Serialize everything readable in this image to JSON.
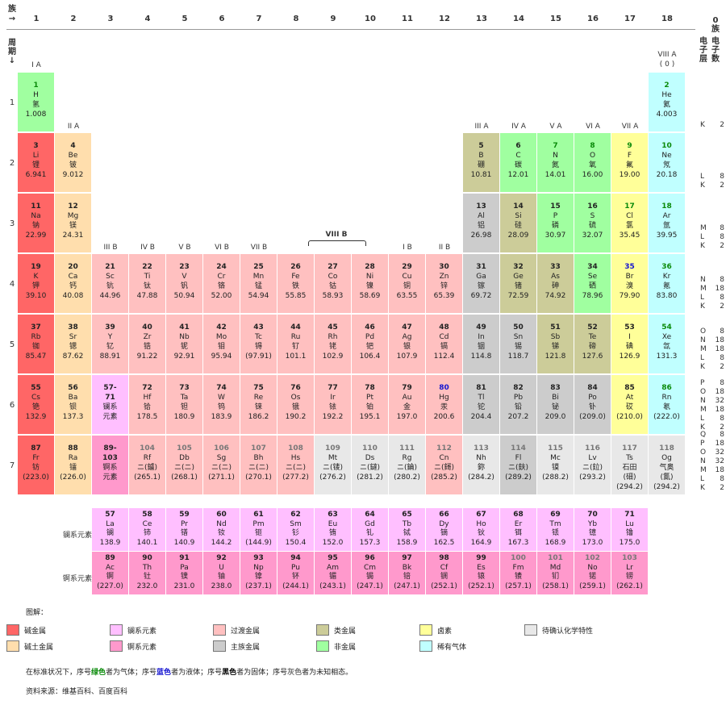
{
  "header": {
    "group_corner": "族\n→",
    "period_corner": "周\n期\n↓",
    "zero_group_heading": "0\n族",
    "shell_heading": "电\n子\n层",
    "electron_heading": "电\n子\n数",
    "group_numbers": [
      "1",
      "2",
      "3",
      "4",
      "5",
      "6",
      "7",
      "8",
      "9",
      "10",
      "11",
      "12",
      "13",
      "14",
      "15",
      "16",
      "17",
      "18"
    ],
    "period_numbers": [
      "1",
      "2",
      "3",
      "4",
      "5",
      "6",
      "7"
    ],
    "subgroup_labels": {
      "IA": "I A",
      "IIA": "II A",
      "IIIB": "III B",
      "IVB": "IV B",
      "VB": "V B",
      "VIB": "VI B",
      "VIIB": "VII B",
      "VIII": "VIII B",
      "IB": "I B",
      "IIB": "II B",
      "IIIA": "III A",
      "IVA": "IV A",
      "VA": "V A",
      "VIA": "VI A",
      "VIIA": "VII A",
      "VIIIA": "VIII A\n( 0 )"
    }
  },
  "colors": {
    "alkali": "#ff6666",
    "alkaline_earth": "#ffdead",
    "lanthanide": "#ffbfff",
    "actinide": "#ff99cc",
    "transition": "#ffc0c0",
    "post_transition": "#cccccc",
    "metalloid": "#cccc99",
    "nonmetal": "#a0ffa0",
    "halogen": "#ffff99",
    "noble_gas": "#c0ffff",
    "unknown": "#e8e8e8"
  },
  "elements": [
    {
      "n": "1",
      "s": "H",
      "c": "氢",
      "m": "1.008",
      "t": "nonmetal",
      "st": "gas"
    },
    {
      "n": "2",
      "s": "He",
      "c": "氦",
      "m": "4.003",
      "t": "noble_gas",
      "st": "gas"
    },
    {
      "n": "3",
      "s": "Li",
      "c": "锂",
      "m": "6.941",
      "t": "alkali",
      "st": "solid"
    },
    {
      "n": "4",
      "s": "Be",
      "c": "铍",
      "m": "9.012",
      "t": "alkaline_earth",
      "st": "solid"
    },
    {
      "n": "5",
      "s": "B",
      "c": "硼",
      "m": "10.81",
      "t": "metalloid",
      "st": "solid"
    },
    {
      "n": "6",
      "s": "C",
      "c": "碳",
      "m": "12.01",
      "t": "nonmetal",
      "st": "solid"
    },
    {
      "n": "7",
      "s": "N",
      "c": "氮",
      "m": "14.01",
      "t": "nonmetal",
      "st": "gas"
    },
    {
      "n": "8",
      "s": "O",
      "c": "氧",
      "m": "16.00",
      "t": "nonmetal",
      "st": "gas"
    },
    {
      "n": "9",
      "s": "F",
      "c": "氟",
      "m": "19.00",
      "t": "halogen",
      "st": "gas"
    },
    {
      "n": "10",
      "s": "Ne",
      "c": "氖",
      "m": "20.18",
      "t": "noble_gas",
      "st": "gas"
    },
    {
      "n": "11",
      "s": "Na",
      "c": "钠",
      "m": "22.99",
      "t": "alkali",
      "st": "solid"
    },
    {
      "n": "12",
      "s": "Mg",
      "c": "镁",
      "m": "24.31",
      "t": "alkaline_earth",
      "st": "solid"
    },
    {
      "n": "13",
      "s": "Al",
      "c": "铝",
      "m": "26.98",
      "t": "post_transition",
      "st": "solid"
    },
    {
      "n": "14",
      "s": "Si",
      "c": "硅",
      "m": "28.09",
      "t": "metalloid",
      "st": "solid"
    },
    {
      "n": "15",
      "s": "P",
      "c": "磷",
      "m": "30.97",
      "t": "nonmetal",
      "st": "solid"
    },
    {
      "n": "16",
      "s": "S",
      "c": "硫",
      "m": "32.07",
      "t": "nonmetal",
      "st": "solid"
    },
    {
      "n": "17",
      "s": "Cl",
      "c": "氯",
      "m": "35.45",
      "t": "halogen",
      "st": "gas"
    },
    {
      "n": "18",
      "s": "Ar",
      "c": "氩",
      "m": "39.95",
      "t": "noble_gas",
      "st": "gas"
    },
    {
      "n": "19",
      "s": "K",
      "c": "钾",
      "m": "39.10",
      "t": "alkali",
      "st": "solid"
    },
    {
      "n": "20",
      "s": "Ca",
      "c": "钙",
      "m": "40.08",
      "t": "alkaline_earth",
      "st": "solid"
    },
    {
      "n": "21",
      "s": "Sc",
      "c": "钪",
      "m": "44.96",
      "t": "transition",
      "st": "solid"
    },
    {
      "n": "22",
      "s": "Ti",
      "c": "钛",
      "m": "47.88",
      "t": "transition",
      "st": "solid"
    },
    {
      "n": "23",
      "s": "V",
      "c": "钒",
      "m": "50.94",
      "t": "transition",
      "st": "solid"
    },
    {
      "n": "24",
      "s": "Cr",
      "c": "铬",
      "m": "52.00",
      "t": "transition",
      "st": "solid"
    },
    {
      "n": "25",
      "s": "Mn",
      "c": "锰",
      "m": "54.94",
      "t": "transition",
      "st": "solid"
    },
    {
      "n": "26",
      "s": "Fe",
      "c": "铁",
      "m": "55.85",
      "t": "transition",
      "st": "solid"
    },
    {
      "n": "27",
      "s": "Co",
      "c": "钴",
      "m": "58.93",
      "t": "transition",
      "st": "solid"
    },
    {
      "n": "28",
      "s": "Ni",
      "c": "镍",
      "m": "58.69",
      "t": "transition",
      "st": "solid"
    },
    {
      "n": "29",
      "s": "Cu",
      "c": "铜",
      "m": "63.55",
      "t": "transition",
      "st": "solid"
    },
    {
      "n": "30",
      "s": "Zn",
      "c": "锌",
      "m": "65.39",
      "t": "transition",
      "st": "solid"
    },
    {
      "n": "31",
      "s": "Ga",
      "c": "镓",
      "m": "69.72",
      "t": "post_transition",
      "st": "solid"
    },
    {
      "n": "32",
      "s": "Ge",
      "c": "锗",
      "m": "72.59",
      "t": "metalloid",
      "st": "solid"
    },
    {
      "n": "33",
      "s": "As",
      "c": "砷",
      "m": "74.92",
      "t": "metalloid",
      "st": "solid"
    },
    {
      "n": "34",
      "s": "Se",
      "c": "硒",
      "m": "78.96",
      "t": "nonmetal",
      "st": "solid"
    },
    {
      "n": "35",
      "s": "Br",
      "c": "溴",
      "m": "79.90",
      "t": "halogen",
      "st": "liquid"
    },
    {
      "n": "36",
      "s": "Kr",
      "c": "氪",
      "m": "83.80",
      "t": "noble_gas",
      "st": "gas"
    },
    {
      "n": "37",
      "s": "Rb",
      "c": "铷",
      "m": "85.47",
      "t": "alkali",
      "st": "solid"
    },
    {
      "n": "38",
      "s": "Sr",
      "c": "锶",
      "m": "87.62",
      "t": "alkaline_earth",
      "st": "solid"
    },
    {
      "n": "39",
      "s": "Y",
      "c": "钇",
      "m": "88.91",
      "t": "transition",
      "st": "solid"
    },
    {
      "n": "40",
      "s": "Zr",
      "c": "锆",
      "m": "91.22",
      "t": "transition",
      "st": "solid"
    },
    {
      "n": "41",
      "s": "Nb",
      "c": "铌",
      "m": "92.91",
      "t": "transition",
      "st": "solid"
    },
    {
      "n": "42",
      "s": "Mo",
      "c": "钼",
      "m": "95.94",
      "t": "transition",
      "st": "solid"
    },
    {
      "n": "43",
      "s": "Tc",
      "c": "锝",
      "m": "(97.91)",
      "t": "transition",
      "st": "solid"
    },
    {
      "n": "44",
      "s": "Ru",
      "c": "钌",
      "m": "101.1",
      "t": "transition",
      "st": "solid"
    },
    {
      "n": "45",
      "s": "Rh",
      "c": "铑",
      "m": "102.9",
      "t": "transition",
      "st": "solid"
    },
    {
      "n": "46",
      "s": "Pd",
      "c": "钯",
      "m": "106.4",
      "t": "transition",
      "st": "solid"
    },
    {
      "n": "47",
      "s": "Ag",
      "c": "银",
      "m": "107.9",
      "t": "transition",
      "st": "solid"
    },
    {
      "n": "48",
      "s": "Cd",
      "c": "镉",
      "m": "112.4",
      "t": "transition",
      "st": "solid"
    },
    {
      "n": "49",
      "s": "In",
      "c": "铟",
      "m": "114.8",
      "t": "post_transition",
      "st": "solid"
    },
    {
      "n": "50",
      "s": "Sn",
      "c": "锡",
      "m": "118.7",
      "t": "post_transition",
      "st": "solid"
    },
    {
      "n": "51",
      "s": "Sb",
      "c": "锑",
      "m": "121.8",
      "t": "metalloid",
      "st": "solid"
    },
    {
      "n": "52",
      "s": "Te",
      "c": "碲",
      "m": "127.6",
      "t": "metalloid",
      "st": "solid"
    },
    {
      "n": "53",
      "s": "I",
      "c": "碘",
      "m": "126.9",
      "t": "halogen",
      "st": "solid"
    },
    {
      "n": "54",
      "s": "Xe",
      "c": "氙",
      "m": "131.3",
      "t": "noble_gas",
      "st": "gas"
    },
    {
      "n": "55",
      "s": "Cs",
      "c": "铯",
      "m": "132.9",
      "t": "alkali",
      "st": "solid"
    },
    {
      "n": "56",
      "s": "Ba",
      "c": "钡",
      "m": "137.3",
      "t": "alkaline_earth",
      "st": "solid"
    },
    {
      "n": "57-\n71",
      "s": "",
      "c": "镧系\n元素",
      "m": "",
      "t": "lanthanide",
      "st": "solid"
    },
    {
      "n": "72",
      "s": "Hf",
      "c": "铪",
      "m": "178.5",
      "t": "transition",
      "st": "solid"
    },
    {
      "n": "73",
      "s": "Ta",
      "c": "钽",
      "m": "180.9",
      "t": "transition",
      "st": "solid"
    },
    {
      "n": "74",
      "s": "W",
      "c": "钨",
      "m": "183.9",
      "t": "transition",
      "st": "solid"
    },
    {
      "n": "75",
      "s": "Re",
      "c": "铼",
      "m": "186.2",
      "t": "transition",
      "st": "solid"
    },
    {
      "n": "76",
      "s": "Os",
      "c": "锇",
      "m": "190.2",
      "t": "transition",
      "st": "solid"
    },
    {
      "n": "77",
      "s": "Ir",
      "c": "铱",
      "m": "192.2",
      "t": "transition",
      "st": "solid"
    },
    {
      "n": "78",
      "s": "Pt",
      "c": "铂",
      "m": "195.1",
      "t": "transition",
      "st": "solid"
    },
    {
      "n": "79",
      "s": "Au",
      "c": "金",
      "m": "197.0",
      "t": "transition",
      "st": "solid"
    },
    {
      "n": "80",
      "s": "Hg",
      "c": "汞",
      "m": "200.6",
      "t": "transition",
      "st": "liquid"
    },
    {
      "n": "81",
      "s": "Tl",
      "c": "铊",
      "m": "204.4",
      "t": "post_transition",
      "st": "solid"
    },
    {
      "n": "82",
      "s": "Pb",
      "c": "铅",
      "m": "207.2",
      "t": "post_transition",
      "st": "solid"
    },
    {
      "n": "83",
      "s": "Bi",
      "c": "铋",
      "m": "209.0",
      "t": "post_transition",
      "st": "solid"
    },
    {
      "n": "84",
      "s": "Po",
      "c": "钋",
      "m": "(209.0)",
      "t": "post_transition",
      "st": "solid"
    },
    {
      "n": "85",
      "s": "At",
      "c": "砹",
      "m": "(210.0)",
      "t": "halogen",
      "st": "solid"
    },
    {
      "n": "86",
      "s": "Rn",
      "c": "氡",
      "m": "(222.0)",
      "t": "noble_gas",
      "st": "gas"
    },
    {
      "n": "87",
      "s": "Fr",
      "c": "钫",
      "m": "(223.0)",
      "t": "alkali",
      "st": "solid"
    },
    {
      "n": "88",
      "s": "Ra",
      "c": "镭",
      "m": "(226.0)",
      "t": "alkaline_earth",
      "st": "solid"
    },
    {
      "n": "89-\n103",
      "s": "",
      "c": "锕系\n元素",
      "m": "",
      "t": "actinide",
      "st": "solid"
    },
    {
      "n": "104",
      "s": "Rf",
      "c": "ニ(鑪)",
      "m": "(265.1)",
      "t": "transition",
      "st": "unknown"
    },
    {
      "n": "105",
      "s": "Db",
      "c": "ニ(ニ)",
      "m": "(268.1)",
      "t": "transition",
      "st": "unknown"
    },
    {
      "n": "106",
      "s": "Sg",
      "c": "ニ(ニ)",
      "m": "(271.1)",
      "t": "transition",
      "st": "unknown"
    },
    {
      "n": "107",
      "s": "Bh",
      "c": "ニ(ニ)",
      "m": "(270.1)",
      "t": "transition",
      "st": "unknown"
    },
    {
      "n": "108",
      "s": "Hs",
      "c": "ニ(ニ)",
      "m": "(277.2)",
      "t": "transition",
      "st": "unknown"
    },
    {
      "n": "109",
      "s": "Mt",
      "c": "ニ(鿏)",
      "m": "(276.2)",
      "t": "unknown",
      "st": "unknown"
    },
    {
      "n": "110",
      "s": "Ds",
      "c": "ニ(鐽)",
      "m": "(281.2)",
      "t": "unknown",
      "st": "unknown"
    },
    {
      "n": "111",
      "s": "Rg",
      "c": "ニ(錀)",
      "m": "(280.2)",
      "t": "unknown",
      "st": "unknown"
    },
    {
      "n": "112",
      "s": "Cn",
      "c": "ニ(鎶)",
      "m": "(285.2)",
      "t": "transition",
      "st": "unknown"
    },
    {
      "n": "113",
      "s": "Nh",
      "c": "鉨",
      "m": "(284.2)",
      "t": "unknown",
      "st": "unknown"
    },
    {
      "n": "114",
      "s": "Fl",
      "c": "ニ(鈇)",
      "m": "(289.2)",
      "t": "post_transition",
      "st": "unknown"
    },
    {
      "n": "115",
      "s": "Mc",
      "c": "镆",
      "m": "(288.2)",
      "t": "unknown",
      "st": "unknown"
    },
    {
      "n": "116",
      "s": "Lv",
      "c": "ニ(鉝)",
      "m": "(293.2)",
      "t": "unknown",
      "st": "unknown"
    },
    {
      "n": "117",
      "s": "Ts",
      "c": "石田\n(鿬)",
      "m": "(294.2)",
      "t": "unknown",
      "st": "unknown"
    },
    {
      "n": "118",
      "s": "Og",
      "c": "气奥\n(鿫)",
      "m": "(294.2)",
      "t": "unknown",
      "st": "unknown"
    }
  ],
  "lanthanides": [
    {
      "n": "57",
      "s": "La",
      "c": "镧",
      "m": "138.9"
    },
    {
      "n": "58",
      "s": "Ce",
      "c": "铈",
      "m": "140.1"
    },
    {
      "n": "59",
      "s": "Pr",
      "c": "镨",
      "m": "140.9"
    },
    {
      "n": "60",
      "s": "Nd",
      "c": "钕",
      "m": "144.2"
    },
    {
      "n": "61",
      "s": "Pm",
      "c": "钷",
      "m": "(144.9)"
    },
    {
      "n": "62",
      "s": "Sm",
      "c": "钐",
      "m": "150.4"
    },
    {
      "n": "63",
      "s": "Eu",
      "c": "铕",
      "m": "152.0"
    },
    {
      "n": "64",
      "s": "Gd",
      "c": "钆",
      "m": "157.3"
    },
    {
      "n": "65",
      "s": "Tb",
      "c": "铽",
      "m": "158.9"
    },
    {
      "n": "66",
      "s": "Dy",
      "c": "镝",
      "m": "162.5"
    },
    {
      "n": "67",
      "s": "Ho",
      "c": "钬",
      "m": "164.9"
    },
    {
      "n": "68",
      "s": "Er",
      "c": "铒",
      "m": "167.3"
    },
    {
      "n": "69",
      "s": "Tm",
      "c": "铥",
      "m": "168.9"
    },
    {
      "n": "70",
      "s": "Yb",
      "c": "镱",
      "m": "173.0"
    },
    {
      "n": "71",
      "s": "Lu",
      "c": "镥",
      "m": "175.0"
    }
  ],
  "actinides": [
    {
      "n": "89",
      "s": "Ac",
      "c": "锕",
      "m": "(227.0)",
      "st": "solid"
    },
    {
      "n": "90",
      "s": "Th",
      "c": "钍",
      "m": "232.0",
      "st": "solid"
    },
    {
      "n": "91",
      "s": "Pa",
      "c": "镤",
      "m": "231.0",
      "st": "solid"
    },
    {
      "n": "92",
      "s": "U",
      "c": "铀",
      "m": "238.0",
      "st": "solid"
    },
    {
      "n": "93",
      "s": "Np",
      "c": "镎",
      "m": "(237.1)",
      "st": "solid"
    },
    {
      "n": "94",
      "s": "Pu",
      "c": "钚",
      "m": "(244.1)",
      "st": "solid"
    },
    {
      "n": "95",
      "s": "Am",
      "c": "镅",
      "m": "(243.1)",
      "st": "solid"
    },
    {
      "n": "96",
      "s": "Cm",
      "c": "锔",
      "m": "(247.1)",
      "st": "solid"
    },
    {
      "n": "97",
      "s": "Bk",
      "c": "锫",
      "m": "(247.1)",
      "st": "solid"
    },
    {
      "n": "98",
      "s": "Cf",
      "c": "锎",
      "m": "(252.1)",
      "st": "solid"
    },
    {
      "n": "99",
      "s": "Es",
      "c": "锿",
      "m": "(252.1)",
      "st": "solid"
    },
    {
      "n": "100",
      "s": "Fm",
      "c": "镄",
      "m": "(257.1)",
      "st": "unknown"
    },
    {
      "n": "101",
      "s": "Md",
      "c": "钔",
      "m": "(258.1)",
      "st": "unknown"
    },
    {
      "n": "102",
      "s": "No",
      "c": "锘",
      "m": "(259.1)",
      "st": "unknown"
    },
    {
      "n": "103",
      "s": "Lr",
      "c": "铹",
      "m": "(262.1)",
      "st": "unknown"
    }
  ],
  "shells": [
    [
      [
        "K",
        "2"
      ]
    ],
    [
      [
        "L",
        "8"
      ],
      [
        "K",
        "2"
      ]
    ],
    [
      [
        "M",
        "8"
      ],
      [
        "L",
        "8"
      ],
      [
        "K",
        "2"
      ]
    ],
    [
      [
        "N",
        "8"
      ],
      [
        "M",
        "18"
      ],
      [
        "L",
        "8"
      ],
      [
        "K",
        "2"
      ]
    ],
    [
      [
        "O",
        "8"
      ],
      [
        "N",
        "18"
      ],
      [
        "M",
        "18"
      ],
      [
        "L",
        "8"
      ],
      [
        "K",
        "2"
      ]
    ],
    [
      [
        "P",
        "8"
      ],
      [
        "O",
        "18"
      ],
      [
        "N",
        "32"
      ],
      [
        "M",
        "18"
      ],
      [
        "L",
        "8"
      ],
      [
        "K",
        "2"
      ]
    ],
    [
      [
        "Q",
        "8"
      ],
      [
        "P",
        "18"
      ],
      [
        "O",
        "32"
      ],
      [
        "N",
        "32"
      ],
      [
        "M",
        "18"
      ],
      [
        "L",
        "8"
      ],
      [
        "K",
        "2"
      ]
    ]
  ],
  "series_labels": {
    "lanthanide": "镧系元素",
    "actinide": "锕系元素"
  },
  "legend": {
    "title": "图解：",
    "items": [
      {
        "label": "碱金属",
        "t": "alkali"
      },
      {
        "label": "镧系元素",
        "t": "lanthanide"
      },
      {
        "label": "过渡金属",
        "t": "transition"
      },
      {
        "label": "类金属",
        "t": "metalloid"
      },
      {
        "label": "卤素",
        "t": "halogen"
      },
      {
        "label": "待确认化学特性",
        "t": "unknown"
      },
      {
        "label": "碱土金属",
        "t": "alkaline_earth"
      },
      {
        "label": "锕系元素",
        "t": "actinide"
      },
      {
        "label": "主族金属",
        "t": "post_transition"
      },
      {
        "label": "非金属",
        "t": "nonmetal"
      },
      {
        "label": "稀有气体",
        "t": "noble_gas"
      }
    ]
  },
  "notes": {
    "state_prefix": "在标准状况下，序号",
    "green": "绿色",
    "gas": "者为气体；序号",
    "blue": "蓝色",
    "liquid": "者为液体；序号",
    "black": "黑色",
    "solid": "者为固体；序号",
    "grey": "灰色",
    "unknown": "者为未知相态。",
    "source": "资料来源：维基百科、百度百科"
  }
}
